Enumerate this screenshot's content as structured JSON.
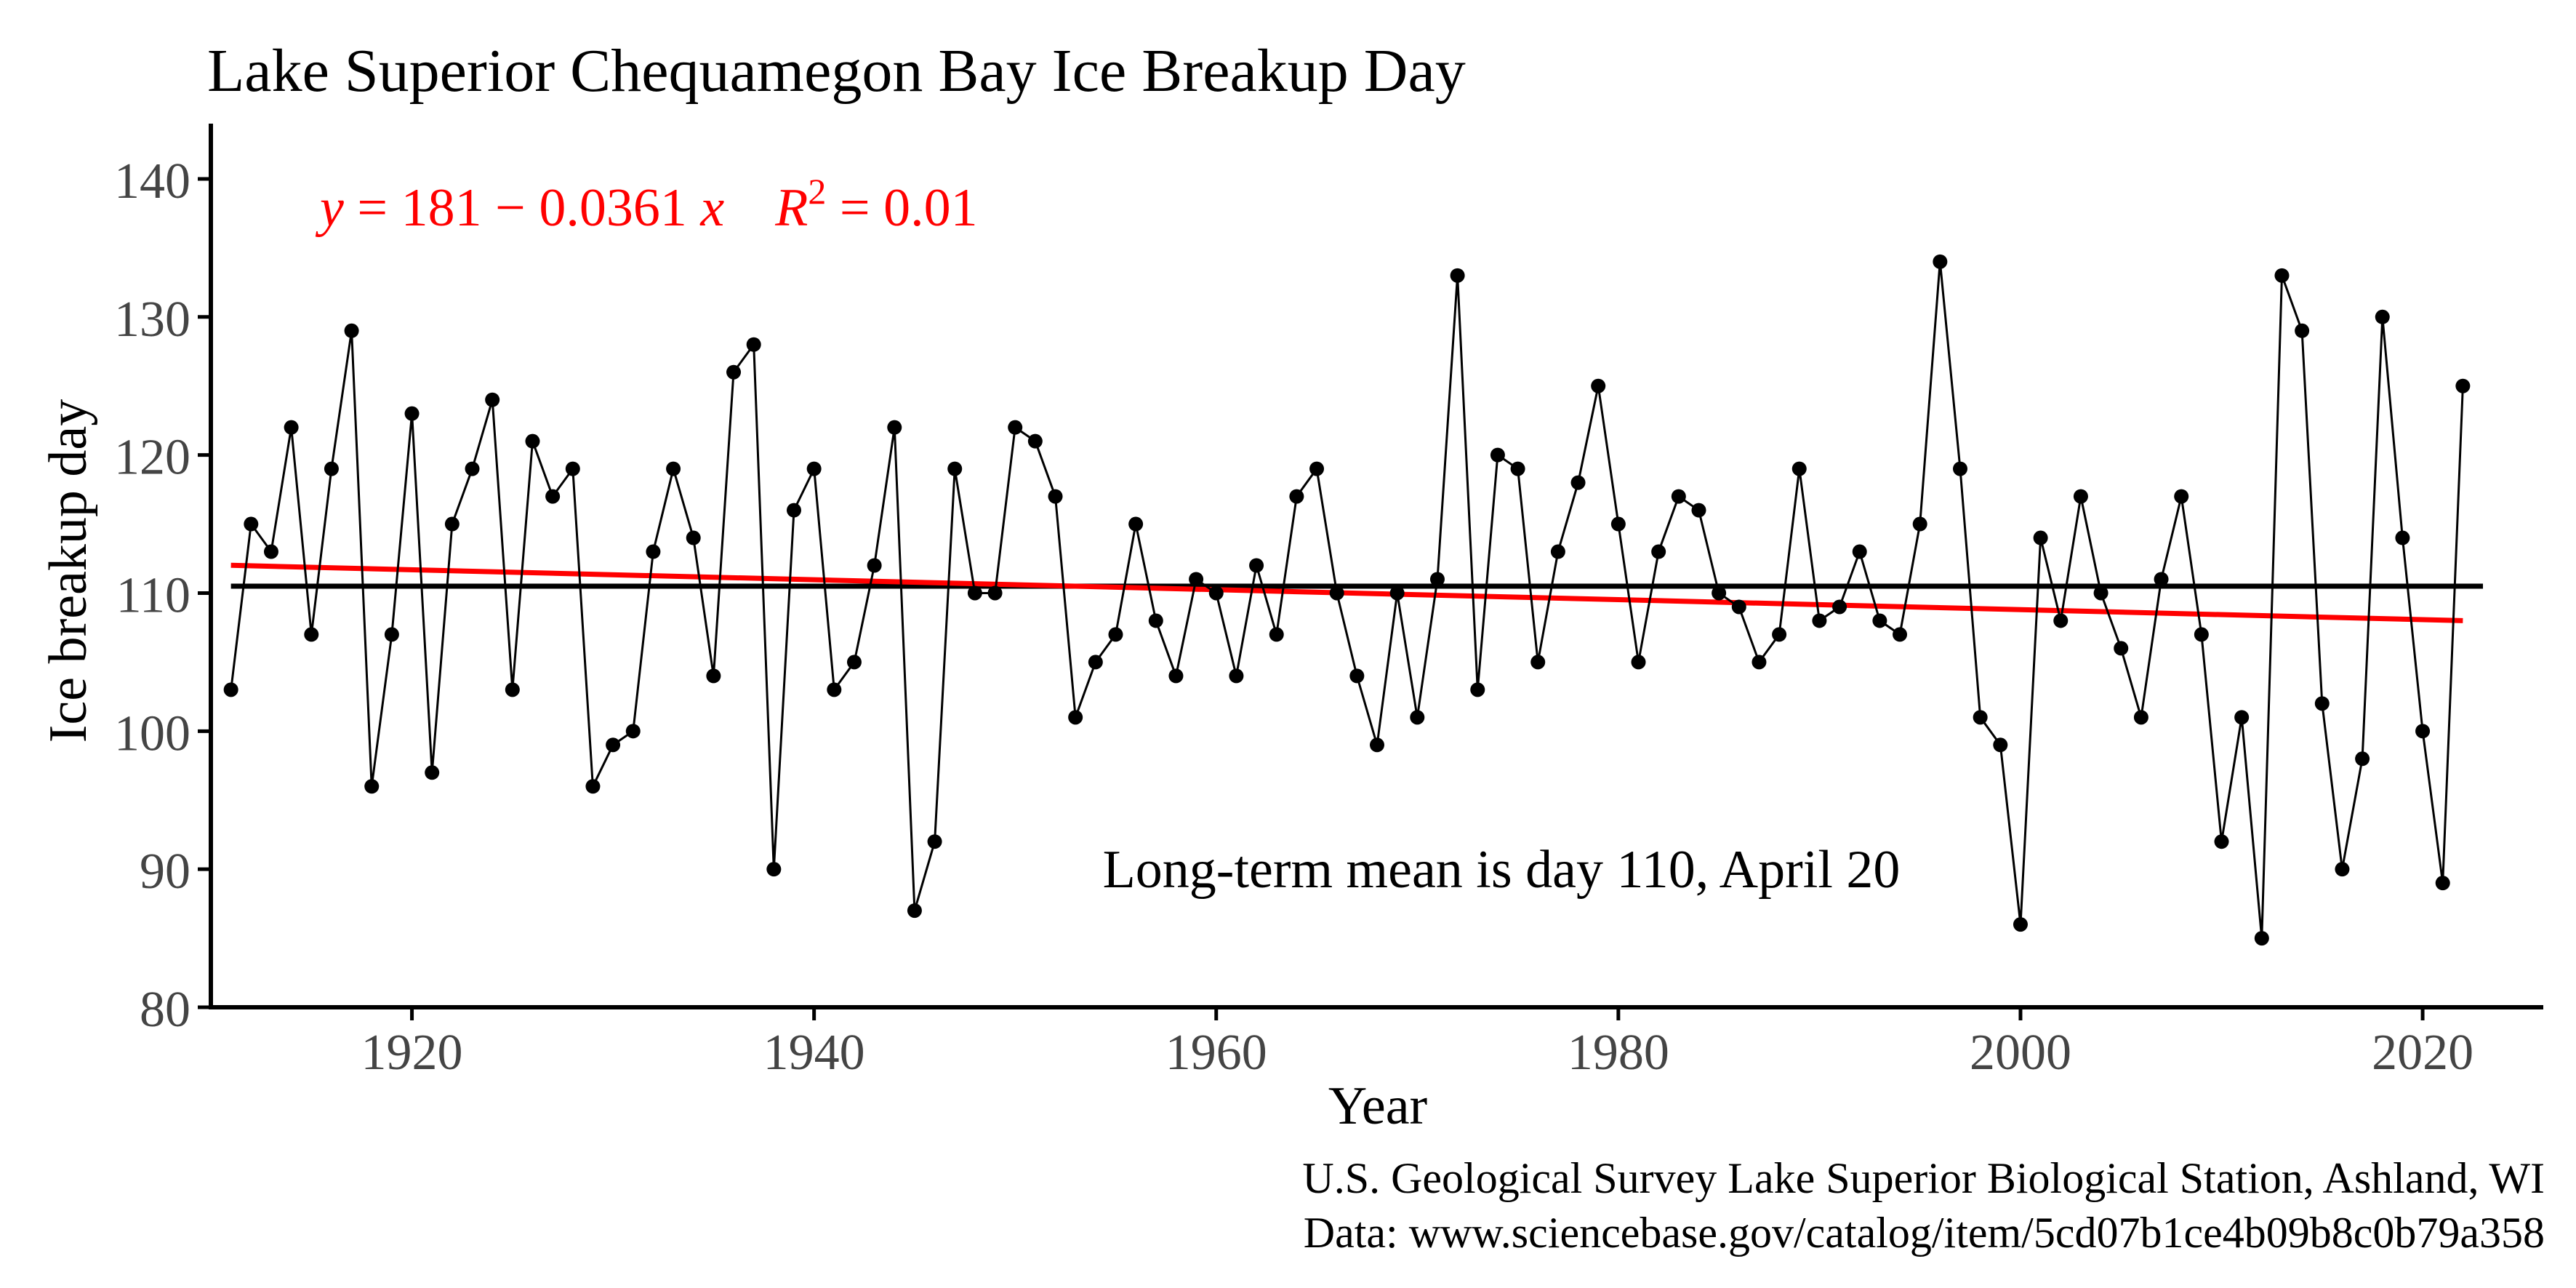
{
  "chart_data": {
    "type": "line",
    "title": "Lake Superior Chequamegon Bay Ice Breakup Day",
    "xlabel": "Year",
    "ylabel": "Ice breakup day",
    "xlim": [
      1910,
      2026
    ],
    "ylim": [
      80,
      144
    ],
    "xticks": [
      1920,
      1940,
      1960,
      1980,
      2000,
      2020
    ],
    "yticks": [
      80,
      90,
      100,
      110,
      120,
      130,
      140
    ],
    "grid": false,
    "series": [
      {
        "x": [
          1911,
          1912,
          1913,
          1914,
          1915,
          1916,
          1917,
          1918,
          1919,
          1920,
          1921,
          1922,
          1923,
          1924,
          1925,
          1926,
          1927,
          1928,
          1929,
          1930,
          1931,
          1932,
          1933,
          1934,
          1935,
          1936,
          1937,
          1938,
          1939,
          1940,
          1941,
          1942,
          1943,
          1944,
          1945,
          1946,
          1947,
          1948,
          1949,
          1950,
          1951,
          1952,
          1953,
          1954,
          1955,
          1956,
          1957,
          1958,
          1959,
          1960,
          1961,
          1962,
          1963,
          1964,
          1965,
          1966,
          1967,
          1968,
          1969,
          1970,
          1971,
          1972,
          1973,
          1974,
          1975,
          1976,
          1977,
          1978,
          1979,
          1980,
          1981,
          1982,
          1983,
          1984,
          1985,
          1986,
          1987,
          1988,
          1989,
          1990,
          1991,
          1992,
          1993,
          1994,
          1995,
          1996,
          1997,
          1998,
          1999,
          2000,
          2001,
          2002,
          2003,
          2004,
          2005,
          2006,
          2007,
          2008,
          2009,
          2010,
          2011,
          2012,
          2013,
          2014,
          2015,
          2016,
          2017,
          2018,
          2019,
          2020,
          2021,
          2022
        ],
        "values": [
          103,
          115,
          113,
          122,
          107,
          119,
          129,
          96,
          107,
          123,
          97,
          115,
          119,
          124,
          103,
          121,
          117,
          119,
          96,
          99,
          100,
          113,
          119,
          114,
          104,
          126,
          128,
          90,
          116,
          119,
          103,
          105,
          112,
          122,
          87,
          92,
          119,
          110,
          110,
          122,
          121,
          117,
          101,
          105,
          107,
          115,
          108,
          104,
          111,
          110,
          104,
          112,
          107,
          117,
          119,
          110,
          104,
          99,
          110,
          101,
          111,
          133,
          103,
          120,
          119,
          105,
          113,
          118,
          125,
          115,
          105,
          113,
          117,
          116,
          110,
          109,
          105,
          107,
          119,
          108,
          109,
          113,
          108,
          107,
          115,
          134,
          119,
          101,
          99,
          86,
          114,
          108,
          117,
          110,
          106,
          101,
          111,
          117,
          107,
          92,
          101,
          85,
          133,
          129,
          102,
          90,
          98,
          130,
          114,
          100,
          89,
          125
        ]
      }
    ],
    "mean_line": {
      "y": 110.5
    },
    "trend_line": {
      "intercept": 181,
      "slope": -0.0361,
      "x_range": [
        1911,
        2022
      ]
    },
    "colors": {
      "data": "#000000",
      "trend": "#ff0000",
      "mean": "#000000"
    },
    "equation": {
      "y": "y",
      "eq1": " = 181 − 0.0361 ",
      "x": "x",
      "r": "R",
      "sup": "2",
      "eq2": " = 0.01"
    },
    "annotation": "Long-term mean is day 110, April 20",
    "caption_line1": "U.S. Geological Survey Lake Superior Biological Station, Ashland, WI",
    "caption_line2": "Data: www.sciencebase.gov/catalog/item/5cd07b1ce4b09b8c0b79a358"
  }
}
